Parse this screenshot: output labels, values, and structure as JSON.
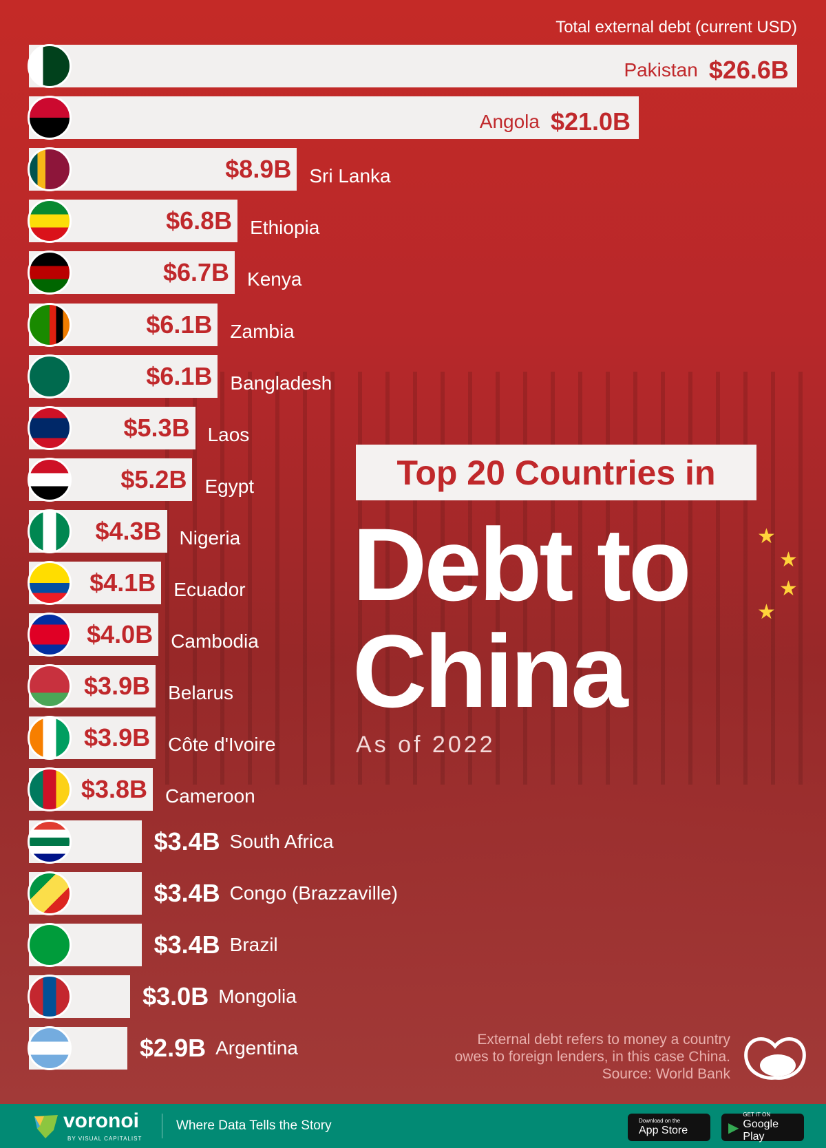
{
  "header": {
    "axis_title": "Total external debt (current USD)"
  },
  "title": {
    "line1": "Top 20 Countries in",
    "line2": "Debt to",
    "line3": "China",
    "subtitle": "As of 2022"
  },
  "note": {
    "line1": "External debt refers to money a country",
    "line2": "owes to foreign lenders, in this case China.",
    "source": "Source: World Bank"
  },
  "footer": {
    "brand": "voronoi",
    "brand_sub": "BY VISUAL CAPITALIST",
    "tagline": "Where Data Tells the Story",
    "app_store_small": "Download on the",
    "app_store": "App Store",
    "play_small": "GET IT ON",
    "play": "Google Play"
  },
  "colors": {
    "bar": "#f2f0ef",
    "value_text": "#c0282b",
    "background": "#b8282a",
    "footer": "#028a74",
    "star": "#ffd43b"
  },
  "chart_data": {
    "type": "bar",
    "orientation": "horizontal",
    "title": "Top 20 Countries in Debt to China",
    "xlabel": "Total external debt (current USD)",
    "unit": "USD billions",
    "categories": [
      "Pakistan",
      "Angola",
      "Sri Lanka",
      "Ethiopia",
      "Kenya",
      "Zambia",
      "Bangladesh",
      "Laos",
      "Egypt",
      "Nigeria",
      "Ecuador",
      "Cambodia",
      "Belarus",
      "Côte d'Ivoire",
      "Cameroon",
      "South Africa",
      "Congo (Brazzaville)",
      "Brazil",
      "Mongolia",
      "Argentina"
    ],
    "values": [
      26.6,
      21.0,
      8.9,
      6.8,
      6.7,
      6.1,
      6.1,
      5.3,
      5.2,
      4.3,
      4.1,
      4.0,
      3.9,
      3.9,
      3.8,
      3.4,
      3.4,
      3.4,
      3.0,
      2.9
    ],
    "labels": [
      "$26.6B",
      "$21.0B",
      "$8.9B",
      "$6.8B",
      "$6.7B",
      "$6.1B",
      "$6.1B",
      "$5.3B",
      "$5.2B",
      "$4.3B",
      "$4.1B",
      "$4.0B",
      "$3.9B",
      "$3.9B",
      "$3.8B",
      "$3.4B",
      "$3.4B",
      "$3.4B",
      "$3.0B",
      "$2.9B"
    ],
    "flags": [
      {
        "dir": "90deg",
        "colors": [
          "#fff",
          "#fff",
          "#01411c",
          "#01411c",
          "#01411c",
          "#01411c"
        ]
      },
      {
        "dir": "180deg",
        "colors": [
          "#cc092f",
          "#000"
        ]
      },
      {
        "dir": "90deg",
        "colors": [
          "#00534e",
          "#f7b718",
          "#8d153a",
          "#8d153a",
          "#8d153a"
        ]
      },
      {
        "dir": "180deg",
        "colors": [
          "#078930",
          "#fcdd09",
          "#da121a"
        ]
      },
      {
        "dir": "180deg",
        "colors": [
          "#000",
          "#bb0000",
          "#006600"
        ]
      },
      {
        "dir": "90deg",
        "colors": [
          "#198a00",
          "#198a00",
          "#198a00",
          "#de2010",
          "#000",
          "#ef7d00"
        ]
      },
      {
        "dir": "90deg",
        "colors": [
          "#006a4e"
        ]
      },
      {
        "dir": "180deg",
        "colors": [
          "#ce1126",
          "#002868",
          "#002868",
          "#ce1126"
        ]
      },
      {
        "dir": "180deg",
        "colors": [
          "#ce1126",
          "#fff",
          "#000"
        ]
      },
      {
        "dir": "90deg",
        "colors": [
          "#008751",
          "#fff",
          "#008751"
        ]
      },
      {
        "dir": "180deg",
        "colors": [
          "#ffdd00",
          "#ffdd00",
          "#034ea2",
          "#ed1c24"
        ]
      },
      {
        "dir": "180deg",
        "colors": [
          "#032ea1",
          "#e00025",
          "#e00025",
          "#032ea1"
        ]
      },
      {
        "dir": "180deg",
        "colors": [
          "#c8313e",
          "#c8313e",
          "#4aa657"
        ]
      },
      {
        "dir": "90deg",
        "colors": [
          "#f77f00",
          "#fff",
          "#009e60"
        ]
      },
      {
        "dir": "90deg",
        "colors": [
          "#007a5e",
          "#ce1126",
          "#fcd116"
        ]
      },
      {
        "dir": "180deg",
        "colors": [
          "#e03c31",
          "#fff",
          "#007749",
          "#fff",
          "#001489"
        ]
      },
      {
        "dir": "135deg",
        "colors": [
          "#009543",
          "#fbde4a",
          "#dc241f"
        ]
      },
      {
        "dir": "90deg",
        "colors": [
          "#009c3b"
        ]
      },
      {
        "dir": "90deg",
        "colors": [
          "#c4272f",
          "#015197",
          "#c4272f"
        ]
      },
      {
        "dir": "180deg",
        "colors": [
          "#74acdf",
          "#fff",
          "#74acdf"
        ]
      }
    ]
  }
}
